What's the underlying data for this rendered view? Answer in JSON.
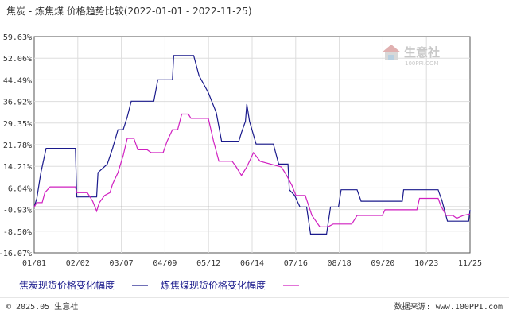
{
  "chart_data": {
    "type": "line",
    "title": "焦炭 - 炼焦煤 价格趋势比较(2022-01-01 - 2022-11-25)",
    "xlabel": "",
    "ylabel": "",
    "x_ticks": [
      "01/01",
      "02/02",
      "03/07",
      "04/09",
      "05/12",
      "06/14",
      "07/16",
      "08/18",
      "09/20",
      "10/23",
      "11/25"
    ],
    "y_ticks": [
      "59.63%",
      "52.06%",
      "44.49%",
      "36.92%",
      "29.35%",
      "21.78%",
      "14.21%",
      "6.64%",
      "-0.93%",
      "-8.50%",
      "-16.07%"
    ],
    "ylim": [
      -16.07,
      59.63
    ],
    "zero_line": 0,
    "grid": true,
    "legend_position": "bottom",
    "series": [
      {
        "name": "焦炭现货价格变化幅度",
        "color": "#1a1a8c",
        "points": [
          [
            "2022-01-01",
            0
          ],
          [
            "2022-01-03",
            3
          ],
          [
            "2022-01-06",
            12
          ],
          [
            "2022-01-10",
            20.5
          ],
          [
            "2022-01-26",
            20.5
          ],
          [
            "2022-02-01",
            20.5
          ],
          [
            "2022-02-02",
            3.5
          ],
          [
            "2022-02-17",
            3.5
          ],
          [
            "2022-02-18",
            12
          ],
          [
            "2022-02-25",
            15
          ],
          [
            "2022-03-01",
            20.5
          ],
          [
            "2022-03-05",
            27
          ],
          [
            "2022-03-09",
            27
          ],
          [
            "2022-03-12",
            31.5
          ],
          [
            "2022-03-15",
            37
          ],
          [
            "2022-04-01",
            37
          ],
          [
            "2022-04-04",
            44.5
          ],
          [
            "2022-04-15",
            44.5
          ],
          [
            "2022-04-16",
            53
          ],
          [
            "2022-05-01",
            53
          ],
          [
            "2022-05-05",
            46
          ],
          [
            "2022-05-12",
            40
          ],
          [
            "2022-05-18",
            33
          ],
          [
            "2022-05-22",
            23
          ],
          [
            "2022-06-04",
            23
          ],
          [
            "2022-06-06",
            26
          ],
          [
            "2022-06-09",
            30
          ],
          [
            "2022-06-10",
            36
          ],
          [
            "2022-06-12",
            30
          ],
          [
            "2022-06-17",
            22
          ],
          [
            "2022-06-24",
            22
          ],
          [
            "2022-06-30",
            22
          ],
          [
            "2022-07-04",
            15
          ],
          [
            "2022-07-11",
            15
          ],
          [
            "2022-07-12",
            6
          ],
          [
            "2022-07-16",
            4
          ],
          [
            "2022-07-20",
            0
          ],
          [
            "2022-07-25",
            0
          ],
          [
            "2022-07-28",
            -9.5
          ],
          [
            "2022-08-09",
            -9.5
          ],
          [
            "2022-08-12",
            0
          ],
          [
            "2022-08-18",
            0
          ],
          [
            "2022-08-20",
            6
          ],
          [
            "2022-09-01",
            6
          ],
          [
            "2022-09-04",
            2
          ],
          [
            "2022-10-05",
            2
          ],
          [
            "2022-10-06",
            6
          ],
          [
            "2022-10-23",
            6
          ],
          [
            "2022-10-27",
            6
          ],
          [
            "2022-11-01",
            6
          ],
          [
            "2022-11-04",
            2
          ],
          [
            "2022-11-08",
            -5
          ],
          [
            "2022-11-15",
            -5
          ],
          [
            "2022-11-24",
            -5
          ],
          [
            "2022-11-25",
            -1
          ]
        ]
      },
      {
        "name": "炼焦煤现货价格变化幅度",
        "color": "#d020c0",
        "points": [
          [
            "2022-01-01",
            0
          ],
          [
            "2022-01-03",
            1.5
          ],
          [
            "2022-01-07",
            1.5
          ],
          [
            "2022-01-09",
            5
          ],
          [
            "2022-01-13",
            7
          ],
          [
            "2022-02-01",
            7
          ],
          [
            "2022-02-02",
            5
          ],
          [
            "2022-02-10",
            5
          ],
          [
            "2022-02-14",
            2
          ],
          [
            "2022-02-17",
            -1.5
          ],
          [
            "2022-02-19",
            1.5
          ],
          [
            "2022-02-23",
            4
          ],
          [
            "2022-02-27",
            5
          ],
          [
            "2022-03-01",
            8
          ],
          [
            "2022-03-05",
            12
          ],
          [
            "2022-03-09",
            18
          ],
          [
            "2022-03-12",
            24
          ],
          [
            "2022-03-17",
            24
          ],
          [
            "2022-03-20",
            20
          ],
          [
            "2022-03-27",
            20
          ],
          [
            "2022-03-30",
            19
          ],
          [
            "2022-04-08",
            19
          ],
          [
            "2022-04-11",
            23
          ],
          [
            "2022-04-15",
            27
          ],
          [
            "2022-04-19",
            27
          ],
          [
            "2022-04-22",
            32.5
          ],
          [
            "2022-04-27",
            32.5
          ],
          [
            "2022-04-29",
            31
          ],
          [
            "2022-05-08",
            31
          ],
          [
            "2022-05-12",
            31
          ],
          [
            "2022-05-16",
            23
          ],
          [
            "2022-05-20",
            16
          ],
          [
            "2022-05-30",
            16
          ],
          [
            "2022-06-02",
            14
          ],
          [
            "2022-06-06",
            11
          ],
          [
            "2022-06-10",
            14
          ],
          [
            "2022-06-15",
            19
          ],
          [
            "2022-06-20",
            16
          ],
          [
            "2022-06-28",
            15
          ],
          [
            "2022-07-06",
            14
          ],
          [
            "2022-07-10",
            11
          ],
          [
            "2022-07-14",
            7.5
          ],
          [
            "2022-07-17",
            4
          ],
          [
            "2022-07-24",
            4
          ],
          [
            "2022-07-29",
            -3
          ],
          [
            "2022-08-01",
            -5
          ],
          [
            "2022-08-04",
            -7
          ],
          [
            "2022-08-10",
            -7
          ],
          [
            "2022-08-14",
            -6
          ],
          [
            "2022-08-28",
            -6
          ],
          [
            "2022-09-01",
            -3
          ],
          [
            "2022-09-07",
            -3
          ],
          [
            "2022-09-18",
            -3
          ],
          [
            "2022-09-20",
            -3
          ],
          [
            "2022-09-22",
            -1
          ],
          [
            "2022-10-16",
            -1
          ],
          [
            "2022-10-18",
            3
          ],
          [
            "2022-11-01",
            3
          ],
          [
            "2022-11-03",
            0.5
          ],
          [
            "2022-11-07",
            -3
          ],
          [
            "2022-11-12",
            -3
          ],
          [
            "2022-11-15",
            -4
          ],
          [
            "2022-11-20",
            -3
          ],
          [
            "2022-11-25",
            -2.5
          ]
        ]
      }
    ]
  },
  "watermark": {
    "brand": "生意社",
    "site": "100PPI.COM"
  },
  "footer": {
    "left": "© 2025.05 生意社",
    "right": "数据来源: www.100PPI.com"
  }
}
